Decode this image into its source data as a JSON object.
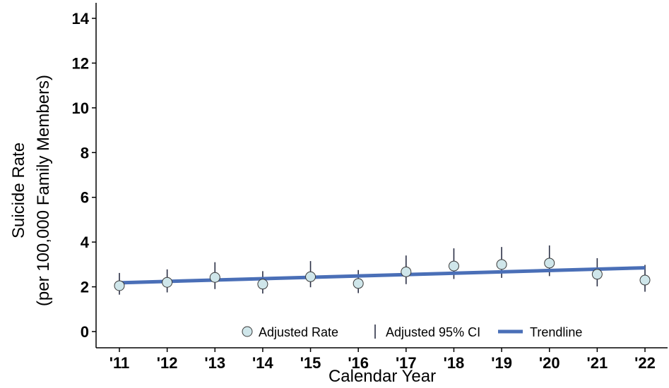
{
  "chart_data": {
    "type": "scatter",
    "title": "",
    "xlabel": "Calendar Year",
    "ylabel_line1": "Suicide Rate",
    "ylabel_line2": "(per 100,000 Family Members)",
    "categories": [
      "'11",
      "'12",
      "'13",
      "'14",
      "'15",
      "'16",
      "'17",
      "'18",
      "'19",
      "'20",
      "'21",
      "'22"
    ],
    "ylim": [
      -0.6,
      14.7
    ],
    "yticks": [
      0,
      2,
      4,
      6,
      8,
      10,
      12,
      14
    ],
    "grid": false,
    "legend_position": "bottom",
    "series": [
      {
        "name": "Adjusted Rate",
        "values": [
          2.05,
          2.2,
          2.42,
          2.12,
          2.45,
          2.15,
          2.67,
          2.93,
          3.0,
          3.06,
          2.56,
          2.3
        ],
        "ci_low": [
          1.65,
          1.75,
          1.9,
          1.7,
          1.98,
          1.72,
          2.12,
          2.35,
          2.4,
          2.48,
          2.02,
          1.78
        ],
        "ci_high": [
          2.62,
          2.78,
          3.1,
          2.7,
          3.15,
          2.75,
          3.4,
          3.72,
          3.78,
          3.85,
          3.28,
          2.98
        ]
      }
    ],
    "ci_name": "Adjusted 95% CI",
    "trendline": {
      "name": "Trendline",
      "start": 2.18,
      "end": 2.85
    },
    "colors": {
      "marker_fill": "#cfe6ea",
      "marker_stroke": "#3a3a3a",
      "ci": "#2a2f45",
      "trend": "#4a6fb7",
      "axis": "#000000"
    }
  }
}
